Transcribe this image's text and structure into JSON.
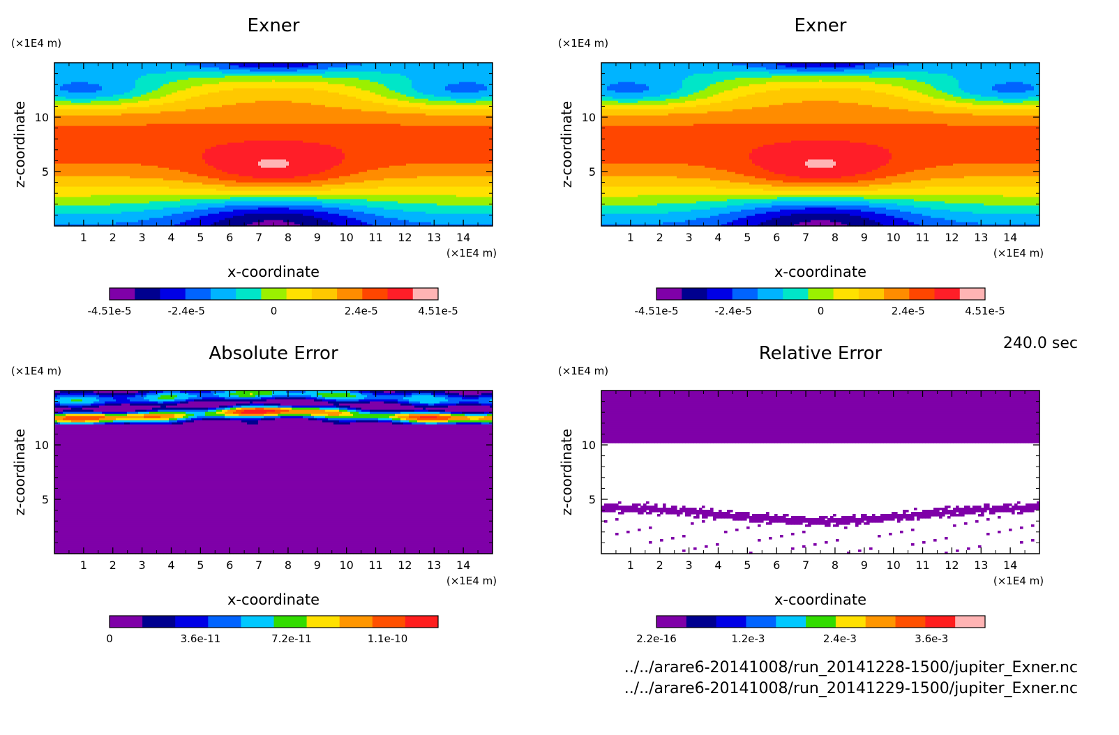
{
  "time_label": "240.0 sec",
  "files": [
    "../../arare6-20141008/run_20141228-1500/jupiter_Exner.nc",
    "../../arare6-20141008/run_20141229-1500/jupiter_Exner.nc"
  ],
  "chart_data": [
    {
      "type": "heatmap",
      "title": "Exner",
      "xlabel": "x-coordinate",
      "ylabel": "z-coordinate",
      "x_unit": "(×1E4 m)",
      "y_unit": "(×1E4 m)",
      "xlim": [
        0,
        15
      ],
      "ylim": [
        0,
        15
      ],
      "x_ticks": [
        1,
        2,
        3,
        4,
        5,
        6,
        7,
        8,
        9,
        10,
        11,
        12,
        13,
        14
      ],
      "y_ticks": [
        5,
        10
      ],
      "colorbar": {
        "min": -4.51e-05,
        "max": 4.51e-05,
        "tick_values": [
          -4.51e-05,
          -2.4e-05,
          0,
          2.4e-05,
          4.51e-05
        ],
        "tick_labels": [
          "-4.51e-5",
          "-2.4e-5",
          "0",
          "2.4e-5",
          "4.51e-5"
        ],
        "colors": [
          "#7f00a8",
          "#00008f",
          "#0000e6",
          "#0064ff",
          "#00b4ff",
          "#00e6c8",
          "#9bf000",
          "#ffe100",
          "#ffc800",
          "#ff8c00",
          "#ff4600",
          "#ff1e28",
          "#ffb4b4"
        ]
      },
      "field": "exner"
    },
    {
      "type": "heatmap",
      "title": "Exner",
      "xlabel": "x-coordinate",
      "ylabel": "z-coordinate",
      "x_unit": "(×1E4 m)",
      "y_unit": "(×1E4 m)",
      "xlim": [
        0,
        15
      ],
      "ylim": [
        0,
        15
      ],
      "x_ticks": [
        1,
        2,
        3,
        4,
        5,
        6,
        7,
        8,
        9,
        10,
        11,
        12,
        13,
        14
      ],
      "y_ticks": [
        5,
        10
      ],
      "colorbar": {
        "min": -4.51e-05,
        "max": 4.51e-05,
        "tick_values": [
          -4.51e-05,
          -2.4e-05,
          0,
          2.4e-05,
          4.51e-05
        ],
        "tick_labels": [
          "-4.51e-5",
          "-2.4e-5",
          "0",
          "2.4e-5",
          "4.51e-5"
        ],
        "colors": [
          "#7f00a8",
          "#00008f",
          "#0000e6",
          "#0064ff",
          "#00b4ff",
          "#00e6c8",
          "#9bf000",
          "#ffe100",
          "#ffc800",
          "#ff8c00",
          "#ff4600",
          "#ff1e28",
          "#ffb4b4"
        ]
      },
      "field": "exner"
    },
    {
      "type": "heatmap",
      "title": "Absolute Error",
      "xlabel": "x-coordinate",
      "ylabel": "z-coordinate",
      "x_unit": "(×1E4 m)",
      "y_unit": "(×1E4 m)",
      "xlim": [
        0,
        15
      ],
      "ylim": [
        0,
        15
      ],
      "x_ticks": [
        1,
        2,
        3,
        4,
        5,
        6,
        7,
        8,
        9,
        10,
        11,
        12,
        13,
        14
      ],
      "y_ticks": [
        5,
        10
      ],
      "colorbar": {
        "min": 0,
        "max": 1.3e-10,
        "tick_values": [
          0,
          3.6e-11,
          7.2e-11,
          1.1e-10
        ],
        "tick_labels": [
          "0",
          "3.6e-11",
          "7.2e-11",
          "1.1e-10"
        ],
        "colors": [
          "#7f00a8",
          "#00008f",
          "#0000e6",
          "#0064ff",
          "#00c8ff",
          "#32dc00",
          "#ffe100",
          "#ff9600",
          "#ff5000",
          "#ff1e1e"
        ]
      },
      "field": "abs_error"
    },
    {
      "type": "heatmap",
      "title": "Relative Error",
      "xlabel": "x-coordinate",
      "ylabel": "z-coordinate",
      "x_unit": "(×1E4 m)",
      "y_unit": "(×1E4 m)",
      "xlim": [
        0,
        15
      ],
      "ylim": [
        0,
        15
      ],
      "x_ticks": [
        1,
        2,
        3,
        4,
        5,
        6,
        7,
        8,
        9,
        10,
        11,
        12,
        13,
        14
      ],
      "y_ticks": [
        5,
        10
      ],
      "colorbar": {
        "min": 2.2e-16,
        "max": 0.0043,
        "tick_values": [
          2.2e-16,
          0.0012,
          0.0024,
          0.0036
        ],
        "tick_labels": [
          "2.2e-16",
          "1.2e-3",
          "2.4e-3",
          "3.6e-3"
        ],
        "colors": [
          "#7f00a8",
          "#00008f",
          "#0000e6",
          "#0064ff",
          "#00c8ff",
          "#32dc00",
          "#ffe100",
          "#ff9600",
          "#ff5000",
          "#ff1e1e",
          "#ffb4b4"
        ]
      },
      "field": "rel_error"
    }
  ]
}
